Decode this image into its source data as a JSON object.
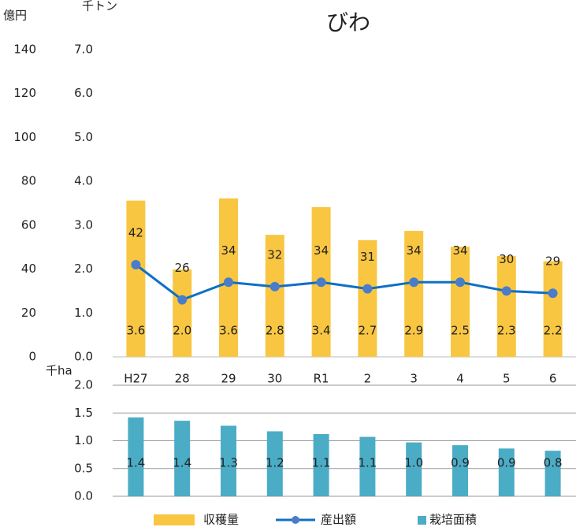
{
  "chart_data": [
    {
      "type": "bar",
      "title": "びわ",
      "ylabel": "千トン",
      "y2label": "億円",
      "categories": [
        "H27",
        "28",
        "29",
        "30",
        "R1",
        "2",
        "3",
        "4",
        "5",
        "6"
      ],
      "series": [
        {
          "name": "収穫量",
          "color": "#f9c642",
          "values": [
            3.56,
            1.99,
            3.61,
            2.78,
            3.41,
            2.66,
            2.87,
            2.51,
            2.3,
            2.18
          ],
          "value_labels": [
            "3.6",
            "2.0",
            "3.6",
            "2.8",
            "3.4",
            "2.7",
            "2.9",
            "2.5",
            "2.3",
            "2.2"
          ]
        },
        {
          "name": "産出額",
          "type": "line",
          "axis": "y2",
          "color": "#0f6fc6",
          "marker_color": "#4a7dc9",
          "values": [
            42,
            26,
            34,
            32,
            34,
            31,
            34,
            34,
            30,
            29
          ]
        }
      ],
      "ylim": [
        0,
        7
      ],
      "yticks": [
        {
          "value": 0,
          "label": "0.0"
        },
        {
          "value": 1,
          "label": "1.0"
        },
        {
          "value": 2,
          "label": "2.0"
        },
        {
          "value": 3,
          "label": "3.0"
        },
        {
          "value": 4,
          "label": "4.0"
        },
        {
          "value": 5,
          "label": "5.0"
        },
        {
          "value": 6,
          "label": "6.0"
        },
        {
          "value": 7,
          "label": "7.0"
        }
      ],
      "y2lim": [
        0,
        140
      ],
      "y2ticks": [
        0,
        20,
        40,
        60,
        80,
        100,
        120,
        140
      ],
      "legend": "bottom"
    },
    {
      "type": "bar",
      "ylabel": "千ha",
      "series": [
        {
          "name": "栽培面積",
          "color": "#4bacc6",
          "values": [
            1.42,
            1.36,
            1.27,
            1.17,
            1.12,
            1.07,
            0.97,
            0.92,
            0.86,
            0.82
          ],
          "value_labels": [
            "1.4",
            "1.4",
            "1.3",
            "1.2",
            "1.1",
            "1.1",
            "1.0",
            "0.9",
            "0.9",
            "0.8"
          ]
        }
      ],
      "ylim": [
        0,
        2
      ],
      "yticks": [
        {
          "value": 0,
          "label": "0.0"
        },
        {
          "value": 0.5,
          "label": "0.5"
        },
        {
          "value": 1,
          "label": "1.0"
        },
        {
          "value": 1.5,
          "label": "1.5"
        },
        {
          "value": 2,
          "label": "2.0"
        }
      ],
      "grid": true
    }
  ]
}
